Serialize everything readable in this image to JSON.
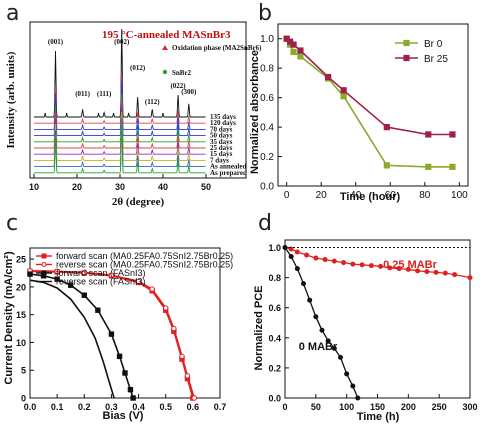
{
  "panels": [
    "a",
    "b",
    "c",
    "d"
  ],
  "chart_data": [
    {
      "panel": "a",
      "type": "line",
      "title": "195 °C-annealed MASnBr3",
      "xlabel": "2θ (degree)",
      "ylabel": "Intensity (arb. units)",
      "xlim": [
        10,
        50
      ],
      "xticks": [
        "10",
        "20",
        "30",
        "40",
        "50"
      ],
      "series_labels": [
        "135 days",
        "120 days",
        "70 days",
        "50 days",
        "35 days",
        "25 days",
        "15 days",
        "7 days",
        "As annealed",
        "As prepared"
      ],
      "series_colors": [
        "#111111",
        "#e0484b",
        "#2a3fd0",
        "#2a3fd0",
        "#2a9d2a",
        "#e04040",
        "#9030b0",
        "#c8b020",
        "#2070c0",
        "#2a9d2a"
      ],
      "peak_positions": [
        15.0,
        21.3,
        26.3,
        30.4,
        34.1,
        37.5,
        43.5,
        46.0
      ],
      "peak_labels": [
        "(001)",
        "(011)",
        "(111)",
        "(002)",
        "(012)",
        "(112)",
        "(022)",
        "(300)"
      ],
      "legend": [
        "Oxidation phase (MA2SnBr6)",
        "SnBr2"
      ],
      "legend_colors": [
        "#e0283a",
        "#2a9d2a"
      ]
    },
    {
      "panel": "b",
      "type": "line",
      "xlabel": "Time (hour)",
      "ylabel": "Normalized absorbance",
      "xlim": [
        -5,
        105
      ],
      "ylim": [
        0,
        1.1
      ],
      "xticks": [
        "0",
        "20",
        "40",
        "60",
        "80",
        "100"
      ],
      "yticks": [
        "0.0",
        "0.2",
        "0.4",
        "0.6",
        "0.8",
        "1.0"
      ],
      "legend_position": "top-right",
      "series": [
        {
          "name": "Br 0",
          "color": "#8aaa2a",
          "x": [
            0,
            2,
            4,
            8,
            24,
            33,
            58,
            82,
            96
          ],
          "y": [
            1.0,
            0.96,
            0.91,
            0.88,
            0.73,
            0.61,
            0.14,
            0.13,
            0.13
          ]
        },
        {
          "name": "Br 25",
          "color": "#a0204a",
          "x": [
            0,
            2,
            4,
            8,
            24,
            33,
            58,
            82,
            96
          ],
          "y": [
            1.0,
            0.98,
            0.96,
            0.92,
            0.74,
            0.65,
            0.4,
            0.35,
            0.35
          ]
        }
      ]
    },
    {
      "panel": "c",
      "type": "line",
      "xlabel": "Bias (V)",
      "ylabel": "Current Density (mA/cm²)",
      "xlim": [
        0,
        0.7
      ],
      "ylim": [
        0,
        27
      ],
      "xticks": [
        "0.0",
        "0.1",
        "0.2",
        "0.3",
        "0.4",
        "0.5",
        "0.6",
        "0.7"
      ],
      "yticks": [
        "0",
        "5",
        "10",
        "15",
        "20",
        "25"
      ],
      "legend_position": "top-left",
      "series": [
        {
          "name": "forward scan (MA0.25FA0.75SnI2.75Br0.25)",
          "color": "#e02020",
          "marker": "square",
          "x": [
            0,
            0.1,
            0.2,
            0.3,
            0.4,
            0.45,
            0.5,
            0.53,
            0.56,
            0.58,
            0.6
          ],
          "y": [
            22.8,
            22.7,
            22.5,
            22.0,
            20.8,
            19.3,
            15.8,
            12.0,
            7.0,
            3.5,
            0
          ]
        },
        {
          "name": "reverse scan (MA0.25FA0.75SnI2.75Br0.25)",
          "color": "#e02020",
          "marker": "circle",
          "x": [
            0,
            0.1,
            0.2,
            0.3,
            0.4,
            0.45,
            0.5,
            0.53,
            0.56,
            0.58,
            0.605
          ],
          "y": [
            22.9,
            22.8,
            22.6,
            22.1,
            21.0,
            19.6,
            16.2,
            12.5,
            7.5,
            4.0,
            0
          ]
        },
        {
          "name": "forward scan (FASnI3)",
          "color": "#111111",
          "marker": "square",
          "x": [
            0,
            0.05,
            0.1,
            0.15,
            0.2,
            0.25,
            0.3,
            0.33,
            0.35,
            0.37,
            0.38
          ],
          "y": [
            22.3,
            22.0,
            21.4,
            20.3,
            18.5,
            15.8,
            11.5,
            7.5,
            4.5,
            1.5,
            0
          ]
        },
        {
          "name": "reverse scan (FASnI3)",
          "color": "#111111",
          "marker": "none",
          "x": [
            0,
            0.05,
            0.1,
            0.15,
            0.2,
            0.24,
            0.27,
            0.29,
            0.31
          ],
          "y": [
            21.2,
            20.8,
            19.8,
            17.8,
            14.5,
            10.8,
            6.5,
            3.2,
            0
          ]
        }
      ]
    },
    {
      "panel": "d",
      "type": "line",
      "xlabel": "Time (h)",
      "ylabel": "Normalized PCE",
      "xlim": [
        0,
        300
      ],
      "ylim": [
        0,
        1.05
      ],
      "xticks": [
        "0",
        "50",
        "100",
        "150",
        "200",
        "250",
        "300"
      ],
      "yticks": [
        "0.0",
        "0.2",
        "0.4",
        "0.6",
        "0.8",
        "1.0"
      ],
      "annotations": [
        "0.25 MABr",
        "0 MABr"
      ],
      "series": [
        {
          "name": "0.25 MABr",
          "color": "#e02020",
          "x": [
            0,
            10,
            20,
            35,
            50,
            65,
            80,
            95,
            110,
            125,
            140,
            155,
            170,
            185,
            200,
            215,
            230,
            245,
            260,
            275,
            300
          ],
          "y": [
            1.0,
            0.99,
            0.97,
            0.95,
            0.93,
            0.92,
            0.91,
            0.9,
            0.89,
            0.885,
            0.88,
            0.875,
            0.865,
            0.86,
            0.855,
            0.845,
            0.84,
            0.835,
            0.83,
            0.82,
            0.8
          ]
        },
        {
          "name": "0 MABr",
          "color": "#111111",
          "x": [
            0,
            10,
            20,
            30,
            40,
            50,
            60,
            70,
            80,
            90,
            100,
            110,
            118
          ],
          "y": [
            1.0,
            0.94,
            0.86,
            0.76,
            0.65,
            0.54,
            0.45,
            0.38,
            0.33,
            0.27,
            0.16,
            0.08,
            0.0
          ]
        },
        {
          "name": "reference",
          "color": "#111111",
          "dashed": true,
          "x": [
            0,
            300
          ],
          "y": [
            1.0,
            1.0
          ]
        }
      ]
    }
  ]
}
